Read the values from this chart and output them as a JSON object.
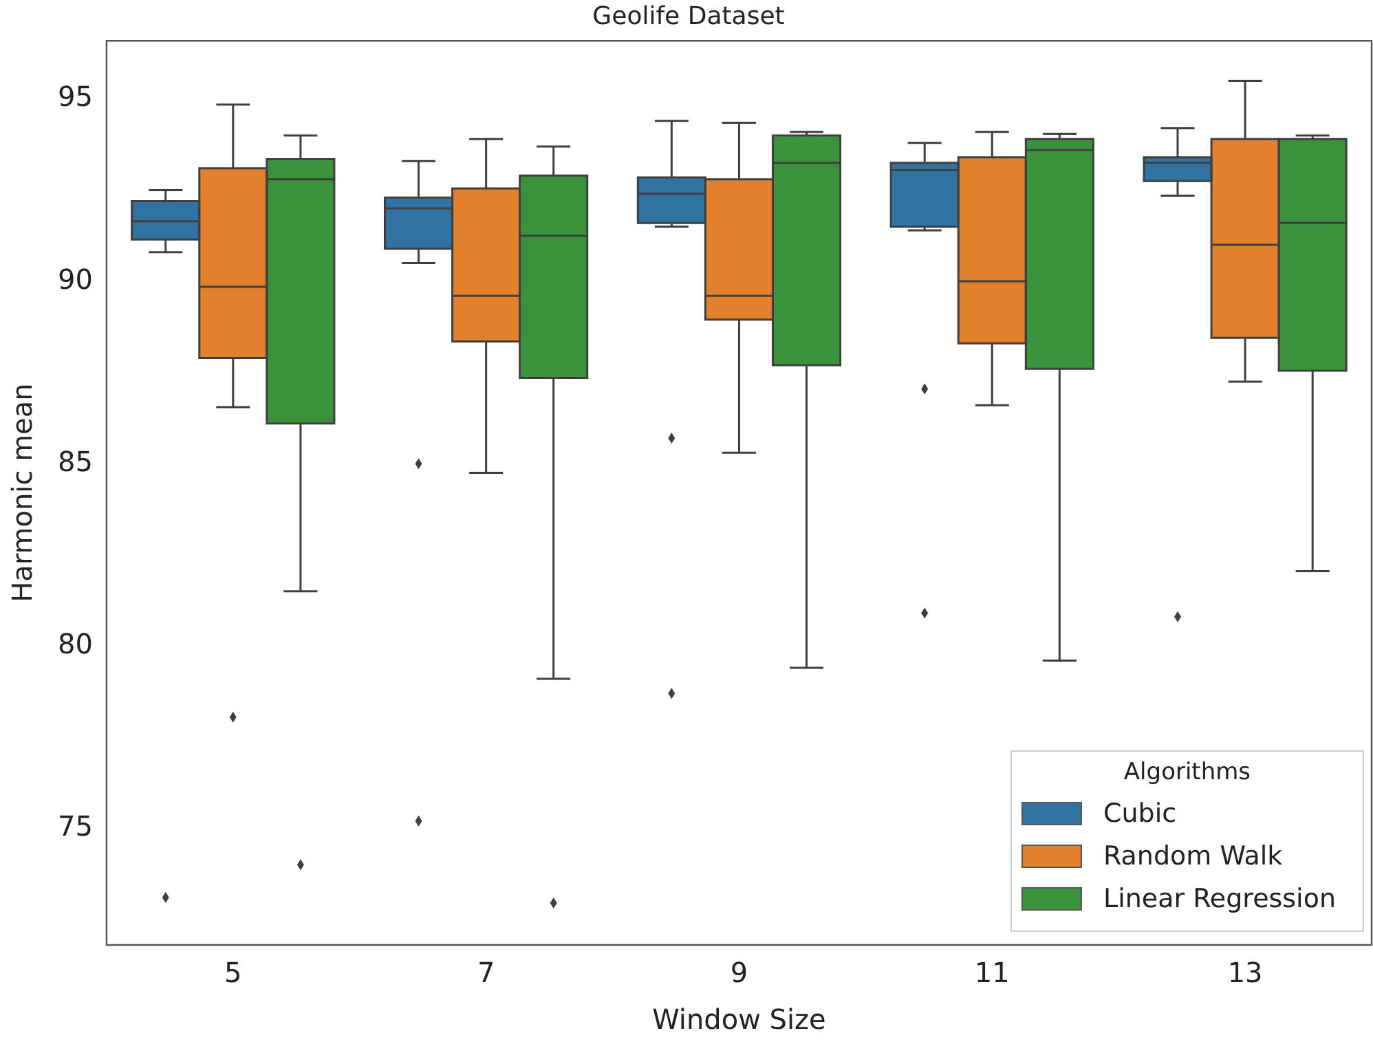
{
  "chart_data": {
    "type": "box",
    "title": "Geolife Dataset",
    "xlabel": "Window Size",
    "ylabel": "Harmonic mean",
    "legend_title": "Algorithms",
    "legend": "bottom right",
    "grid": false,
    "categories": [
      "5",
      "7",
      "9",
      "11",
      "13"
    ],
    "ylim": [
      71.8,
      96.6
    ],
    "yticks": [
      75,
      80,
      85,
      90,
      95
    ],
    "series": [
      {
        "name": "Cubic",
        "color": "#3274a1",
        "boxes": [
          {
            "low": 90.8,
            "q1": 91.15,
            "median": 91.65,
            "q3": 92.2,
            "high": 92.5,
            "outliers": [
              73.1
            ]
          },
          {
            "low": 90.5,
            "q1": 90.9,
            "median": 92.0,
            "q3": 92.3,
            "high": 93.3,
            "outliers": [
              85.0,
              75.2
            ]
          },
          {
            "low": 91.5,
            "q1": 91.6,
            "median": 92.4,
            "q3": 92.85,
            "high": 94.4,
            "outliers": [
              85.7,
              78.7
            ]
          },
          {
            "low": 91.4,
            "q1": 91.5,
            "median": 93.05,
            "q3": 93.25,
            "high": 93.8,
            "outliers": [
              87.05,
              80.9
            ]
          },
          {
            "low": 92.35,
            "q1": 92.75,
            "median": 93.25,
            "q3": 93.4,
            "high": 94.2,
            "outliers": [
              80.8
            ]
          }
        ]
      },
      {
        "name": "Random Walk",
        "color": "#e1812c",
        "boxes": [
          {
            "low": 86.55,
            "q1": 87.9,
            "median": 89.85,
            "q3": 93.1,
            "high": 94.85,
            "outliers": [
              78.05
            ]
          },
          {
            "low": 84.75,
            "q1": 88.35,
            "median": 89.6,
            "q3": 92.55,
            "high": 93.9
          },
          {
            "low": 85.3,
            "q1": 88.95,
            "median": 89.6,
            "q3": 92.8,
            "high": 94.35
          },
          {
            "low": 86.6,
            "q1": 88.3,
            "median": 90.0,
            "q3": 93.4,
            "high": 94.1
          },
          {
            "low": 87.25,
            "q1": 88.45,
            "median": 91.0,
            "q3": 93.9,
            "high": 95.5
          }
        ]
      },
      {
        "name": "Linear Regression",
        "color": "#3a923a",
        "boxes": [
          {
            "low": 81.5,
            "q1": 86.1,
            "median": 92.8,
            "q3": 93.35,
            "high": 94.0,
            "outliers": [
              74.0
            ]
          },
          {
            "low": 79.1,
            "q1": 87.35,
            "median": 91.25,
            "q3": 92.9,
            "high": 93.7,
            "outliers": [
              72.95
            ]
          },
          {
            "low": 79.4,
            "q1": 87.7,
            "median": 93.25,
            "q3": 94.0,
            "high": 94.1
          },
          {
            "low": 79.6,
            "q1": 87.6,
            "median": 93.6,
            "q3": 93.9,
            "high": 94.05
          },
          {
            "low": 82.05,
            "q1": 87.55,
            "median": 91.6,
            "q3": 93.9,
            "high": 94.0
          }
        ]
      }
    ]
  }
}
